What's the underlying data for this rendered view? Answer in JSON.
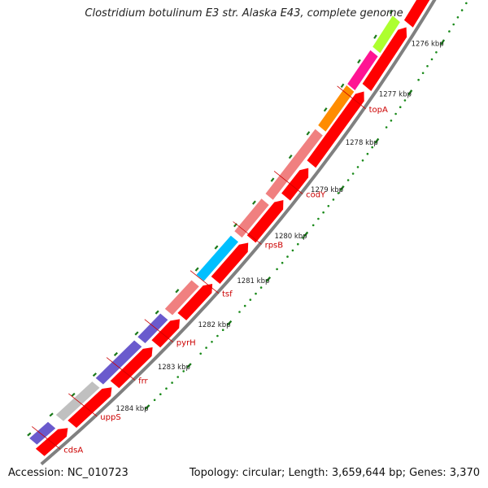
{
  "title": "Clostridium botulinum E3 str. Alaska E43, complete genome",
  "accession": "Accession: NC_010723",
  "footer": "Topology: circular; Length: 3,659,644 bp; Genes: 3,370",
  "colors": {
    "backbone": "#808080",
    "forward_track": "#ff0000",
    "tick_major": "#1a7a1a",
    "tick_minor": "#1a8a1a",
    "label": "#cc0000"
  },
  "scale_ticks": [
    {
      "label": "1276 kbp"
    },
    {
      "label": "1277 kbp"
    },
    {
      "label": "1278 kbp"
    },
    {
      "label": "1279 kbp"
    },
    {
      "label": "1280 kbp"
    },
    {
      "label": "1281 kbp"
    },
    {
      "label": "1282 kbp"
    },
    {
      "label": "1283 kbp"
    },
    {
      "label": "1284 kbp"
    }
  ],
  "genes": [
    {
      "name": "topA",
      "color": "#ff1493",
      "strand": "reverse"
    },
    {
      "name": "codY",
      "color": "#ff8c00",
      "strand": "reverse"
    },
    {
      "name": "rpsB",
      "color": "#f08080",
      "strand": "reverse"
    },
    {
      "name": "tsf",
      "color": "#f08080",
      "strand": "reverse"
    },
    {
      "name": "pyrH",
      "color": "#00bfff",
      "strand": "reverse"
    },
    {
      "name": "frr",
      "color": "#f08080",
      "strand": "reverse"
    },
    {
      "name": "uppS",
      "color": "#6a5acd",
      "strand": "reverse"
    },
    {
      "name": "cdsA",
      "color": "#6a5acd",
      "strand": "reverse"
    },
    {
      "name": "",
      "color": "#c0c0c0",
      "strand": "reverse"
    },
    {
      "name": "",
      "color": "#adff2f",
      "strand": "reverse"
    }
  ]
}
